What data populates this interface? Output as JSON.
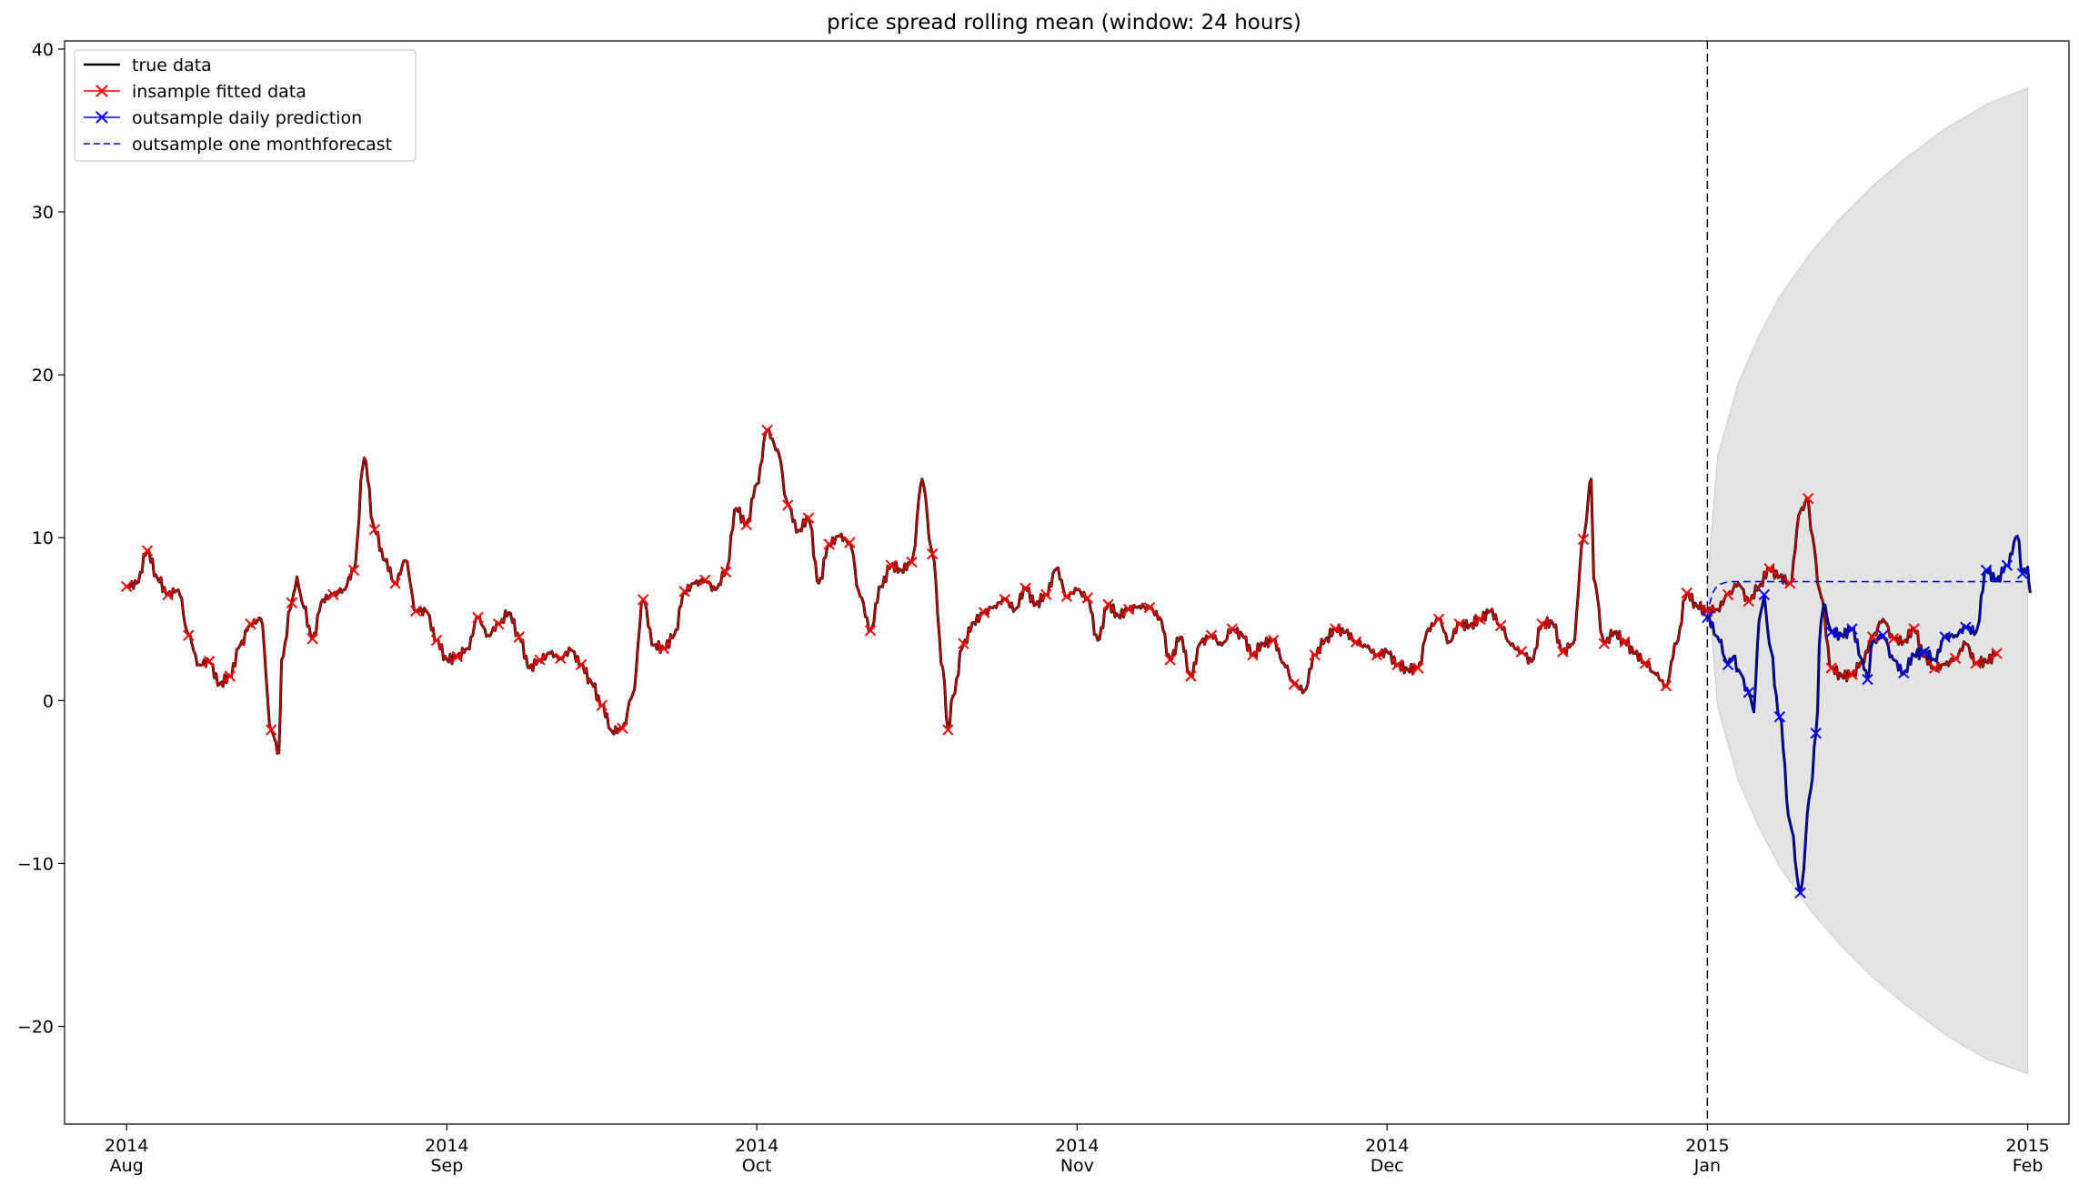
{
  "chart_data": {
    "type": "line",
    "title": "price spread rolling mean (window: 24 hours)",
    "xlabel": "",
    "ylabel": "",
    "ylim": [
      -26,
      40.5
    ],
    "xlim": [
      "2014-07-26",
      "2015-02-05"
    ],
    "grid": false,
    "legend_position": "upper left",
    "y_ticks": [
      {
        "value": 40,
        "label": "40"
      },
      {
        "value": 30,
        "label": "30"
      },
      {
        "value": 20,
        "label": "20"
      },
      {
        "value": 10,
        "label": "10"
      },
      {
        "value": 0,
        "label": "0"
      },
      {
        "value": -10,
        "label": "−10"
      },
      {
        "value": -20,
        "label": "−20"
      }
    ],
    "x_ticks": [
      {
        "date": "2014-08-01",
        "year": "2014",
        "month": "Aug"
      },
      {
        "date": "2014-09-01",
        "year": "2014",
        "month": "Sep"
      },
      {
        "date": "2014-10-01",
        "year": "2014",
        "month": "Oct"
      },
      {
        "date": "2014-11-01",
        "year": "2014",
        "month": "Nov"
      },
      {
        "date": "2014-12-01",
        "year": "2014",
        "month": "Dec"
      },
      {
        "date": "2015-01-01",
        "year": "2015",
        "month": "Jan"
      },
      {
        "date": "2015-02-01",
        "year": "2015",
        "month": "Feb"
      }
    ],
    "vline": {
      "date": "2015-01-01"
    },
    "confidence_band": {
      "color": "#e3e3e3",
      "upper": [
        [
          "2015-01-01",
          7.3
        ],
        [
          "2015-01-02",
          15.0
        ],
        [
          "2015-01-04",
          19.5
        ],
        [
          "2015-01-06",
          22.4
        ],
        [
          "2015-01-08",
          24.8
        ],
        [
          "2015-01-11",
          27.5
        ],
        [
          "2015-01-14",
          29.7
        ],
        [
          "2015-01-17",
          31.6
        ],
        [
          "2015-01-20",
          33.2
        ],
        [
          "2015-01-24",
          35.1
        ],
        [
          "2015-01-28",
          36.6
        ],
        [
          "2015-02-01",
          37.6
        ]
      ],
      "lower": [
        [
          "2015-01-01",
          7.3
        ],
        [
          "2015-01-02",
          -0.4
        ],
        [
          "2015-01-04",
          -4.9
        ],
        [
          "2015-01-06",
          -7.8
        ],
        [
          "2015-01-08",
          -10.2
        ],
        [
          "2015-01-11",
          -12.9
        ],
        [
          "2015-01-14",
          -15.1
        ],
        [
          "2015-01-17",
          -17.0
        ],
        [
          "2015-01-20",
          -18.6
        ],
        [
          "2015-01-24",
          -20.5
        ],
        [
          "2015-01-28",
          -22.0
        ],
        [
          "2015-02-01",
          -22.9
        ]
      ]
    },
    "legend": [
      {
        "label": "true data",
        "color": "#000000",
        "style": "solid",
        "marker": "none"
      },
      {
        "label": "insample fitted data",
        "color": "#ff0000",
        "style": "solid",
        "marker": "x"
      },
      {
        "label": "outsample daily prediction",
        "color": "#0000ff",
        "style": "solid",
        "marker": "x"
      },
      {
        "label": "outsample one monthforecast",
        "color": "#0000ff",
        "style": "dashed",
        "marker": "none"
      }
    ],
    "series": [
      {
        "name": "insample fitted data",
        "color": "#ff0000",
        "marker": "x",
        "points": [
          [
            "2014-08-01",
            7.0
          ],
          [
            "2014-08-02",
            7.2
          ],
          [
            "2014-08-03",
            9.2
          ],
          [
            "2014-08-04",
            7.5
          ],
          [
            "2014-08-05",
            6.5
          ],
          [
            "2014-08-06",
            6.8
          ],
          [
            "2014-08-07",
            4.0
          ],
          [
            "2014-08-08",
            2.2
          ],
          [
            "2014-08-09",
            2.4
          ],
          [
            "2014-08-10",
            1.0
          ],
          [
            "2014-08-11",
            1.5
          ],
          [
            "2014-08-12",
            3.4
          ],
          [
            "2014-08-13",
            4.7
          ],
          [
            "2014-08-14",
            5.0
          ],
          [
            "2014-08-15",
            -1.8
          ],
          [
            "2014-08-15T18:00",
            -3.2
          ],
          [
            "2014-08-16",
            2.5
          ],
          [
            "2014-08-17",
            6.0
          ],
          [
            "2014-08-17T12:00",
            7.6
          ],
          [
            "2014-08-18",
            6.0
          ],
          [
            "2014-08-19",
            3.8
          ],
          [
            "2014-08-20",
            6.2
          ],
          [
            "2014-08-21",
            6.5
          ],
          [
            "2014-08-22",
            6.8
          ],
          [
            "2014-08-23",
            8.0
          ],
          [
            "2014-08-24",
            14.9
          ],
          [
            "2014-08-25",
            10.5
          ],
          [
            "2014-08-26",
            8.6
          ],
          [
            "2014-08-27",
            7.2
          ],
          [
            "2014-08-28",
            8.6
          ],
          [
            "2014-08-29",
            5.5
          ],
          [
            "2014-08-30",
            5.5
          ],
          [
            "2014-08-31",
            3.7
          ],
          [
            "2014-09-01",
            2.5
          ],
          [
            "2014-09-02",
            2.7
          ],
          [
            "2014-09-03",
            3.2
          ],
          [
            "2014-09-04",
            5.1
          ],
          [
            "2014-09-05",
            4.0
          ],
          [
            "2014-09-06",
            4.7
          ],
          [
            "2014-09-07",
            5.4
          ],
          [
            "2014-09-08",
            3.9
          ],
          [
            "2014-09-09",
            2.0
          ],
          [
            "2014-09-10",
            2.5
          ],
          [
            "2014-09-11",
            2.9
          ],
          [
            "2014-09-12",
            2.6
          ],
          [
            "2014-09-13",
            3.1
          ],
          [
            "2014-09-14",
            2.2
          ],
          [
            "2014-09-15",
            1.1
          ],
          [
            "2014-09-16",
            -0.3
          ],
          [
            "2014-09-17",
            -1.9
          ],
          [
            "2014-09-18",
            -1.7
          ],
          [
            "2014-09-19",
            0.4
          ],
          [
            "2014-09-20",
            6.2
          ],
          [
            "2014-09-21",
            3.4
          ],
          [
            "2014-09-22",
            3.2
          ],
          [
            "2014-09-23",
            4.0
          ],
          [
            "2014-09-24",
            6.7
          ],
          [
            "2014-09-25",
            7.2
          ],
          [
            "2014-09-26",
            7.4
          ],
          [
            "2014-09-27",
            6.8
          ],
          [
            "2014-09-28",
            7.9
          ],
          [
            "2014-09-29",
            11.8
          ],
          [
            "2014-09-30",
            10.8
          ],
          [
            "2014-10-01",
            13.3
          ],
          [
            "2014-10-02",
            16.6
          ],
          [
            "2014-10-03",
            15.4
          ],
          [
            "2014-10-04",
            12.0
          ],
          [
            "2014-10-05",
            10.4
          ],
          [
            "2014-10-06",
            11.2
          ],
          [
            "2014-10-07",
            7.2
          ],
          [
            "2014-10-08",
            9.6
          ],
          [
            "2014-10-09",
            10.1
          ],
          [
            "2014-10-10",
            9.7
          ],
          [
            "2014-10-11",
            6.4
          ],
          [
            "2014-10-12",
            4.3
          ],
          [
            "2014-10-13",
            7.0
          ],
          [
            "2014-10-14",
            8.3
          ],
          [
            "2014-10-15",
            8.0
          ],
          [
            "2014-10-16",
            8.5
          ],
          [
            "2014-10-17",
            13.6
          ],
          [
            "2014-10-18",
            9.0
          ],
          [
            "2014-10-19",
            2.0
          ],
          [
            "2014-10-19T12:00",
            -1.8
          ],
          [
            "2014-10-20",
            0.3
          ],
          [
            "2014-10-21",
            3.5
          ],
          [
            "2014-10-22",
            4.8
          ],
          [
            "2014-10-23",
            5.4
          ],
          [
            "2014-10-24",
            5.8
          ],
          [
            "2014-10-25",
            6.2
          ],
          [
            "2014-10-26",
            5.6
          ],
          [
            "2014-10-27",
            6.9
          ],
          [
            "2014-10-28",
            5.9
          ],
          [
            "2014-10-29",
            6.5
          ],
          [
            "2014-10-30",
            8.1
          ],
          [
            "2014-10-31",
            6.4
          ],
          [
            "2014-11-01",
            6.8
          ],
          [
            "2014-11-02",
            6.3
          ],
          [
            "2014-11-03",
            3.7
          ],
          [
            "2014-11-04",
            5.9
          ],
          [
            "2014-11-05",
            5.2
          ],
          [
            "2014-11-06",
            5.6
          ],
          [
            "2014-11-07",
            5.8
          ],
          [
            "2014-11-08",
            5.7
          ],
          [
            "2014-11-09",
            5.1
          ],
          [
            "2014-11-10",
            2.5
          ],
          [
            "2014-11-11",
            3.9
          ],
          [
            "2014-11-12",
            1.5
          ],
          [
            "2014-11-13",
            3.6
          ],
          [
            "2014-11-14",
            4.0
          ],
          [
            "2014-11-15",
            3.4
          ],
          [
            "2014-11-16",
            4.4
          ],
          [
            "2014-11-17",
            4.0
          ],
          [
            "2014-11-18",
            2.8
          ],
          [
            "2014-11-19",
            3.5
          ],
          [
            "2014-11-20",
            3.7
          ],
          [
            "2014-11-21",
            2.3
          ],
          [
            "2014-11-22",
            1.0
          ],
          [
            "2014-11-23",
            0.6
          ],
          [
            "2014-11-24",
            2.8
          ],
          [
            "2014-11-25",
            3.7
          ],
          [
            "2014-11-26",
            4.4
          ],
          [
            "2014-11-27",
            4.2
          ],
          [
            "2014-11-28",
            3.6
          ],
          [
            "2014-11-29",
            3.3
          ],
          [
            "2014-11-30",
            2.8
          ],
          [
            "2014-12-01",
            3.0
          ],
          [
            "2014-12-02",
            2.2
          ],
          [
            "2014-12-03",
            1.9
          ],
          [
            "2014-12-04",
            2.0
          ],
          [
            "2014-12-05",
            4.4
          ],
          [
            "2014-12-06",
            5.0
          ],
          [
            "2014-12-07",
            3.6
          ],
          [
            "2014-12-08",
            4.7
          ],
          [
            "2014-12-09",
            4.6
          ],
          [
            "2014-12-10",
            5.0
          ],
          [
            "2014-12-11",
            5.5
          ],
          [
            "2014-12-12",
            4.6
          ],
          [
            "2014-12-13",
            3.4
          ],
          [
            "2014-12-14",
            3.0
          ],
          [
            "2014-12-15",
            2.4
          ],
          [
            "2014-12-16",
            4.7
          ],
          [
            "2014-12-17",
            4.8
          ],
          [
            "2014-12-18",
            3.0
          ],
          [
            "2014-12-19",
            3.5
          ],
          [
            "2014-12-20",
            9.9
          ],
          [
            "2014-12-20T18:00",
            13.6
          ],
          [
            "2014-12-21",
            7.5
          ],
          [
            "2014-12-22",
            3.5
          ],
          [
            "2014-12-23",
            4.2
          ],
          [
            "2014-12-24",
            3.6
          ],
          [
            "2014-12-25",
            2.9
          ],
          [
            "2014-12-26",
            2.3
          ],
          [
            "2014-12-27",
            1.6
          ],
          [
            "2014-12-28",
            0.9
          ],
          [
            "2014-12-29",
            3.5
          ],
          [
            "2014-12-30",
            6.6
          ],
          [
            "2014-12-31",
            5.8
          ],
          [
            "2015-01-01",
            5.5
          ],
          [
            "2015-01-02",
            5.6
          ],
          [
            "2015-01-03",
            6.5
          ],
          [
            "2015-01-04",
            7.2
          ],
          [
            "2015-01-05",
            6.1
          ],
          [
            "2015-01-06",
            7.0
          ],
          [
            "2015-01-07",
            8.1
          ],
          [
            "2015-01-08",
            7.6
          ],
          [
            "2015-01-09",
            7.2
          ],
          [
            "2015-01-10",
            11.6
          ],
          [
            "2015-01-10T18:00",
            12.4
          ],
          [
            "2015-01-11",
            10.5
          ],
          [
            "2015-01-12",
            6.4
          ],
          [
            "2015-01-13",
            2.0
          ],
          [
            "2015-01-14",
            1.5
          ],
          [
            "2015-01-15",
            1.6
          ],
          [
            "2015-01-16",
            2.4
          ],
          [
            "2015-01-17",
            3.9
          ],
          [
            "2015-01-18",
            5.0
          ],
          [
            "2015-01-19",
            3.8
          ],
          [
            "2015-01-20",
            3.6
          ],
          [
            "2015-01-21",
            4.4
          ],
          [
            "2015-01-22",
            2.7
          ],
          [
            "2015-01-23",
            2.0
          ],
          [
            "2015-01-24",
            2.2
          ],
          [
            "2015-01-25",
            2.6
          ],
          [
            "2015-01-26",
            3.5
          ],
          [
            "2015-01-27",
            2.3
          ],
          [
            "2015-01-28",
            2.4
          ],
          [
            "2015-01-29",
            2.9
          ]
        ]
      },
      {
        "name": "outsample daily prediction",
        "color": "#0000ff",
        "marker": "x",
        "points": [
          [
            "2015-01-01",
            5.1
          ],
          [
            "2015-01-02",
            3.9
          ],
          [
            "2015-01-03",
            2.2
          ],
          [
            "2015-01-03T12:00",
            2.7
          ],
          [
            "2015-01-04",
            1.9
          ],
          [
            "2015-01-05",
            0.5
          ],
          [
            "2015-01-05T12:00",
            -0.7
          ],
          [
            "2015-01-06",
            4.9
          ],
          [
            "2015-01-06T12:00",
            6.5
          ],
          [
            "2015-01-07",
            3.5
          ],
          [
            "2015-01-08",
            -1.0
          ],
          [
            "2015-01-09",
            -7.5
          ],
          [
            "2015-01-10",
            -11.8
          ],
          [
            "2015-01-11",
            -5.5
          ],
          [
            "2015-01-11T12:00",
            -2.0
          ],
          [
            "2015-01-12",
            4.8
          ],
          [
            "2015-01-12T06:00",
            5.9
          ],
          [
            "2015-01-13",
            4.2
          ],
          [
            "2015-01-14",
            4.0
          ],
          [
            "2015-01-15",
            4.4
          ],
          [
            "2015-01-16",
            2.5
          ],
          [
            "2015-01-16T12:00",
            1.3
          ],
          [
            "2015-01-17",
            3.6
          ],
          [
            "2015-01-18",
            4.0
          ],
          [
            "2015-01-19",
            2.5
          ],
          [
            "2015-01-20",
            1.7
          ],
          [
            "2015-01-21",
            2.8
          ],
          [
            "2015-01-22",
            3.0
          ],
          [
            "2015-01-23",
            2.5
          ],
          [
            "2015-01-24",
            3.9
          ],
          [
            "2015-01-25",
            4.0
          ],
          [
            "2015-01-26",
            4.5
          ],
          [
            "2015-01-27",
            4.2
          ],
          [
            "2015-01-28",
            8.0
          ],
          [
            "2015-01-29",
            7.4
          ],
          [
            "2015-01-30",
            8.3
          ],
          [
            "2015-01-31",
            10.1
          ],
          [
            "2015-01-31T12:00",
            7.8
          ],
          [
            "2015-02-01",
            8.2
          ],
          [
            "2015-02-01T06:00",
            6.6
          ]
        ]
      },
      {
        "name": "outsample one monthforecast",
        "color": "#0000ff",
        "style": "dashed",
        "points": [
          [
            "2015-01-01",
            5.2
          ],
          [
            "2015-01-01T06:00",
            6.0
          ],
          [
            "2015-01-01T12:00",
            6.6
          ],
          [
            "2015-01-02",
            7.1
          ],
          [
            "2015-01-03",
            7.3
          ],
          [
            "2015-02-01",
            7.3
          ]
        ]
      }
    ]
  }
}
